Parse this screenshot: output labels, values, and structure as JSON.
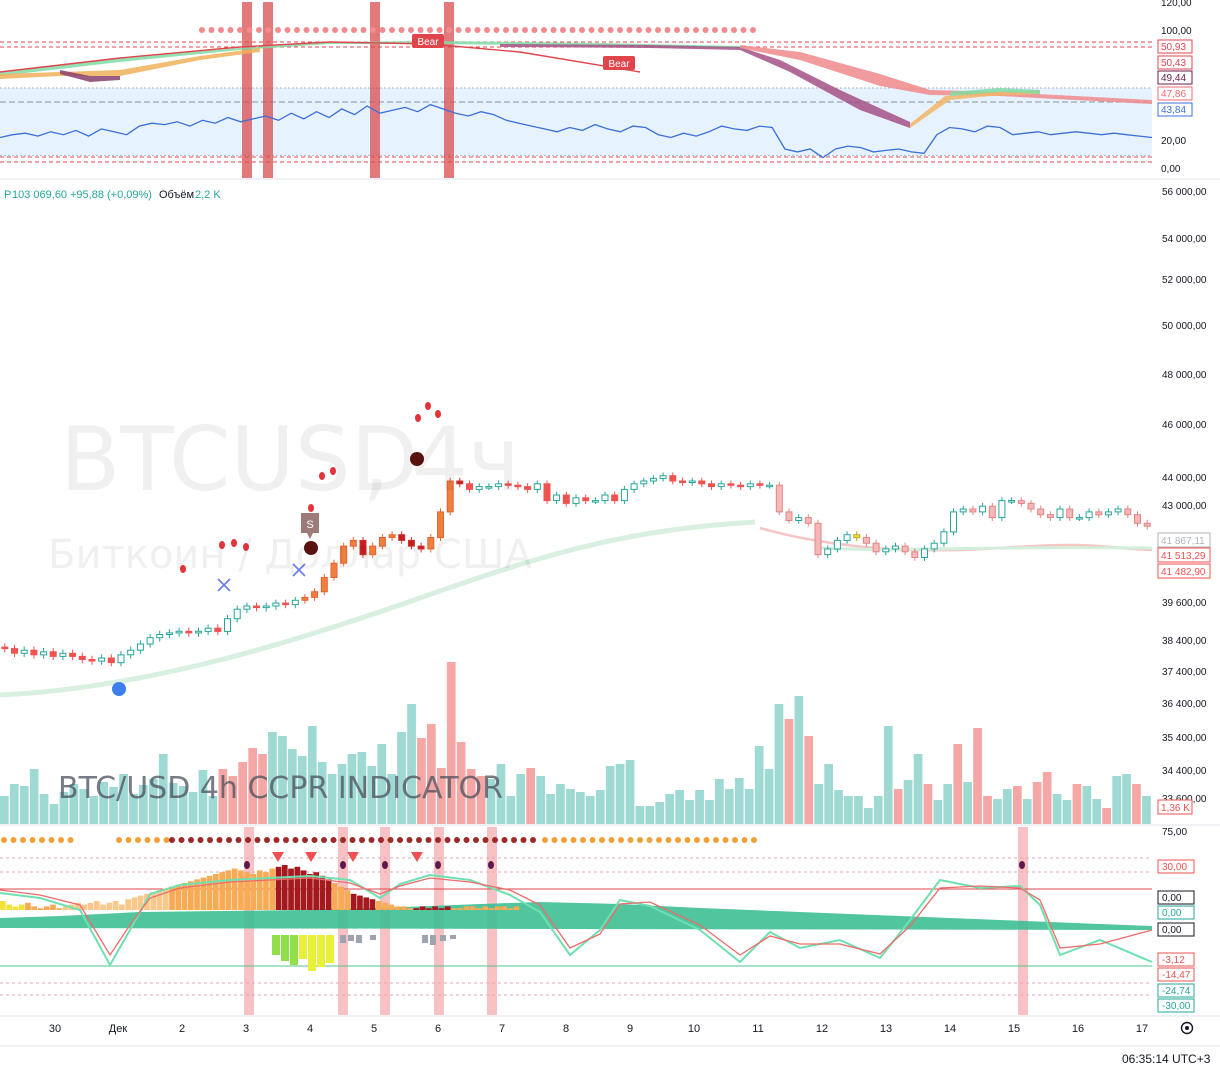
{
  "symbol_line": {
    "prefix": "P",
    "price": "103 069,60",
    "change": "+95,88 (+0,09%)",
    "volume_label": "Объём",
    "volume_value": "2,2 K"
  },
  "watermark": {
    "ticker": "BTCUSD",
    "separator": ",",
    "interval": "4ч",
    "description": "Биткоин / Доллар США"
  },
  "overlay_caption": "BTC/USD 4h   CCPR INDICATOR",
  "clock": "06:35:14 UTC+3",
  "colors": {
    "bull": "#26a69a",
    "bear": "#ef5350",
    "bull_soft": "#9fd9d3",
    "bear_soft": "#f4a7a5",
    "rsi": "#3c6fd8",
    "dark_red": "#a3191d"
  },
  "top_panel": {
    "axis_labels": [
      "120,00",
      "100,00",
      "20,00",
      "0,00"
    ],
    "axis_ticks": [
      120,
      100,
      20,
      0
    ],
    "price_tags": [
      {
        "text": "50,93",
        "color": "#e0454c",
        "fill": "#ffffff"
      },
      {
        "text": "50,43",
        "color": "#e0454c",
        "fill": "#ffffff"
      },
      {
        "text": "49,44",
        "color": "#6b1e4d",
        "fill": "#ffffff"
      },
      {
        "text": "47,86",
        "color": "#f06a70",
        "fill": "#ffffff"
      },
      {
        "text": "43,84",
        "color": "#3c6fd8",
        "fill": "#ffffff"
      }
    ],
    "tag_values": [
      50.93,
      50.43,
      49.44,
      47.86,
      43.84
    ],
    "bear_labels": [
      "Bear",
      "Bear"
    ],
    "rsi_values": [
      38,
      40,
      41,
      39,
      42,
      40,
      43,
      39,
      44,
      42,
      40,
      46,
      48,
      47,
      49,
      46,
      50,
      48,
      52,
      49,
      51,
      53,
      50,
      55,
      51,
      56,
      52,
      58,
      54,
      60,
      55,
      57,
      59,
      56,
      61,
      58,
      55,
      53,
      56,
      54,
      50,
      48,
      46,
      44,
      42,
      45,
      43,
      47,
      44,
      42,
      46,
      45,
      40,
      38,
      41,
      39,
      42,
      46,
      44,
      43,
      46,
      45,
      30,
      28,
      30,
      24,
      30,
      32,
      31,
      28,
      29,
      30,
      28,
      27,
      40,
      45,
      44,
      42,
      46,
      45,
      40,
      41,
      42,
      40,
      41,
      42,
      41,
      40,
      41,
      40,
      39,
      38
    ],
    "marker_dots_start": 0.17,
    "marker_dots_end": 0.62
  },
  "main_panel": {
    "axis_labels": [
      "56 000,00",
      "54 000,00",
      "52 000,00",
      "50 000,00",
      "48 000,00",
      "46 000,00",
      "44 000,00",
      "43 000,00",
      "39 600,00",
      "38 400,00",
      "37 400,00",
      "36 400,00",
      "35 400,00",
      "34 400,00",
      "33 600,00"
    ],
    "axis_ticks": [
      56000,
      54000,
      52000,
      50000,
      48000,
      46000,
      44000,
      43000,
      39600,
      38400,
      37400,
      36400,
      35400,
      34400,
      33600
    ],
    "price_tags": [
      {
        "text": "41 867,11",
        "color": "#b0b6c0",
        "fill": "#ffffff"
      },
      {
        "text": "41 513,29",
        "color": "#ef5350",
        "fill": "#ffffff"
      },
      {
        "text": "41 482,90",
        "color": "#ef5350",
        "fill": "#ffffff"
      }
    ],
    "tag_values": [
      41867.11,
      41513.29,
      41482.9
    ],
    "volume_tag": {
      "text": "1,36 K",
      "color": "#ef5350"
    },
    "sell_label": "S"
  },
  "chart_data": {
    "type": "candlestick",
    "title": "BTCUSD, 4ч",
    "x_ticks": [
      "30",
      "Дек",
      "2",
      "3",
      "4",
      "5",
      "6",
      "7",
      "8",
      "9",
      "10",
      "11",
      "12",
      "13",
      "14",
      "15",
      "16",
      "17"
    ],
    "closes": [
      38250,
      38100,
      38200,
      38050,
      38150,
      38000,
      38100,
      38000,
      37900,
      37850,
      37950,
      37800,
      38050,
      38200,
      38400,
      38600,
      38700,
      38750,
      38800,
      38750,
      38800,
      38900,
      38800,
      39200,
      39500,
      39600,
      39550,
      39600,
      39700,
      39650,
      39800,
      39900,
      40100,
      40600,
      41100,
      41700,
      41900,
      41400,
      41700,
      42000,
      42100,
      41900,
      41700,
      41600,
      42000,
      42900,
      44000,
      43900,
      43700,
      43800,
      43800,
      43900,
      43850,
      43800,
      43700,
      43900,
      43300,
      43500,
      43200,
      43400,
      43300,
      43300,
      43500,
      43300,
      43700,
      43900,
      44000,
      44100,
      44200,
      44000,
      43950,
      44000,
      43900,
      43800,
      43900,
      43850,
      43800,
      43900,
      43850,
      43850,
      42900,
      42600,
      42700,
      42500,
      41400,
      41600,
      41900,
      42100,
      42000,
      41800,
      41500,
      41600,
      41700,
      41500,
      41300,
      41600,
      41800,
      42200,
      42900,
      43000,
      42900,
      43100,
      42700,
      43300,
      43300,
      43200,
      43000,
      42800,
      42700,
      43000,
      42700,
      42700,
      42900,
      42800,
      42900,
      43000,
      42800,
      42500,
      42400
    ],
    "volume_bars": [
      28,
      40,
      38,
      55,
      30,
      20,
      32,
      40,
      35,
      28,
      42,
      37,
      50,
      30,
      39,
      45,
      70,
      41,
      38,
      32,
      54,
      28,
      55,
      48,
      62,
      76,
      70,
      92,
      88,
      75,
      68,
      98,
      62,
      50,
      60,
      70,
      72,
      58,
      80,
      50,
      92,
      120,
      86,
      100,
      56,
      162,
      82,
      55,
      48,
      45,
      60,
      28,
      50,
      56,
      48,
      30,
      40,
      35,
      32,
      28,
      34,
      58,
      60,
      64,
      18,
      18,
      22,
      30,
      34,
      24,
      34,
      24,
      45,
      35,
      46,
      35,
      78,
      55,
      120,
      105,
      128,
      88,
      40,
      60,
      34,
      28,
      28,
      16,
      28,
      98,
      35,
      44,
      70,
      40,
      24,
      40,
      80,
      42,
      96,
      28,
      25,
      35,
      38,
      25,
      42,
      52,
      30,
      24,
      40,
      38,
      25,
      16,
      48,
      50,
      40,
      28
    ],
    "ccpr_histogram": [
      0.05,
      0.03,
      0.02,
      0.03,
      0.04,
      0.02,
      0.01,
      0.02,
      0.03,
      0.01,
      0.02,
      0.03,
      0.04,
      0.03,
      0.04,
      0.05,
      0.03,
      0.04,
      0.05,
      0.03,
      0.06,
      0.07,
      0.08,
      0.09,
      0.1,
      0.11,
      0.12,
      0.13,
      0.14,
      0.15,
      0.16,
      0.17,
      0.18,
      0.19,
      0.2,
      0.21,
      0.22,
      0.23,
      0.22,
      0.21,
      0.2,
      0.22,
      0.21,
      0.23,
      0.24,
      0.25,
      0.23,
      0.24,
      0.22,
      0.2,
      0.21,
      0.19,
      0.17,
      0.15,
      0.13,
      0.11,
      0.09,
      0.08,
      0.07,
      0.06,
      0.05,
      0.04,
      0.03,
      0.02,
      0.02,
      0.01,
      0.01,
      0.02,
      0.01,
      0.02,
      0.01,
      0.02,
      0.01,
      0.01,
      0.02,
      0.02,
      0.01,
      0.02,
      0.01,
      0.02,
      0.02,
      0.01,
      0.02
    ],
    "ccpr_axis_labels": [
      "75,00",
      "30,00",
      "0,00",
      "0,00",
      "0,00",
      "-3,12",
      "-14,47",
      "-24,74",
      "-30,00"
    ]
  }
}
